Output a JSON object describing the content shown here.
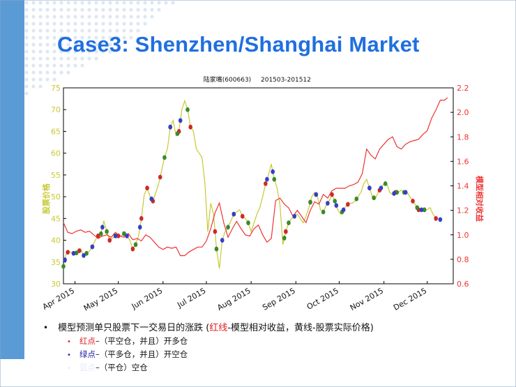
{
  "slide": {
    "title": "Case3: Shenzhen/Shanghai Market"
  },
  "chart_data": {
    "type": "line",
    "title": "陆家嘴(600663)",
    "subtitle": "201503-201512",
    "ylabel": "股票价格",
    "ylabel_right": "模型相对收益",
    "ylim": [
      30,
      75
    ],
    "ylim_right": [
      0.6,
      2.2
    ],
    "yticks": [
      "30",
      "35",
      "40",
      "45",
      "50",
      "55",
      "60",
      "65",
      "70",
      "75"
    ],
    "yticks_right": [
      "0.6",
      "0.8",
      "1.0",
      "1.2",
      "1.4",
      "1.6",
      "1.8",
      "2.0",
      "2.2"
    ],
    "xlim": [
      0,
      270
    ],
    "xticks": [
      {
        "x": 8,
        "label": "Apr 2015"
      },
      {
        "x": 38,
        "label": "May 2015"
      },
      {
        "x": 69,
        "label": "Jun 2015"
      },
      {
        "x": 99,
        "label": "Jul 2015"
      },
      {
        "x": 130,
        "label": "Aug 2015"
      },
      {
        "x": 161,
        "label": "Sep 2015"
      },
      {
        "x": 191,
        "label": "Oct 2015"
      },
      {
        "x": 222,
        "label": "Nov 2015"
      },
      {
        "x": 252,
        "label": "Dec 2015"
      }
    ],
    "series": [
      {
        "name": "股票实际价格",
        "axis": "left",
        "color": "#c8c832",
        "points": [
          [
            0,
            34
          ],
          [
            2,
            37
          ],
          [
            4,
            37.5
          ],
          [
            6,
            37
          ],
          [
            8,
            37
          ],
          [
            10,
            37.2
          ],
          [
            12,
            38
          ],
          [
            14,
            36.5
          ],
          [
            16,
            37
          ],
          [
            18,
            37.5
          ],
          [
            20,
            38.5
          ],
          [
            22,
            40
          ],
          [
            24,
            41
          ],
          [
            26,
            41.5
          ],
          [
            28,
            44.5
          ],
          [
            30,
            42
          ],
          [
            32,
            40
          ],
          [
            34,
            40.5
          ],
          [
            36,
            41
          ],
          [
            38,
            41
          ],
          [
            40,
            41
          ],
          [
            42,
            41.5
          ],
          [
            44,
            41
          ],
          [
            46,
            40
          ],
          [
            48,
            38
          ],
          [
            50,
            39
          ],
          [
            52,
            41
          ],
          [
            54,
            45
          ],
          [
            56,
            50.5
          ],
          [
            58,
            52
          ],
          [
            60,
            50
          ],
          [
            62,
            49
          ],
          [
            64,
            51
          ],
          [
            66,
            53
          ],
          [
            68,
            56
          ],
          [
            70,
            59
          ],
          [
            72,
            61
          ],
          [
            74,
            66
          ],
          [
            76,
            67.5
          ],
          [
            78,
            64
          ],
          [
            80,
            65
          ],
          [
            82,
            70
          ],
          [
            84,
            72
          ],
          [
            86,
            70
          ],
          [
            88,
            66
          ],
          [
            90,
            65
          ],
          [
            92,
            61
          ],
          [
            94,
            60
          ],
          [
            96,
            59
          ],
          [
            98,
            53
          ],
          [
            100,
            42
          ],
          [
            102,
            48.5
          ],
          [
            104,
            46
          ],
          [
            106,
            38
          ],
          [
            108,
            33.5
          ],
          [
            110,
            40
          ],
          [
            112,
            42
          ],
          [
            114,
            43
          ],
          [
            116,
            44.5
          ],
          [
            118,
            46
          ],
          [
            120,
            46.5
          ],
          [
            122,
            47
          ],
          [
            124,
            45.5
          ],
          [
            126,
            45
          ],
          [
            128,
            44
          ],
          [
            130,
            42
          ],
          [
            132,
            44
          ],
          [
            134,
            46
          ],
          [
            136,
            47.5
          ],
          [
            138,
            50
          ],
          [
            140,
            53
          ],
          [
            142,
            55
          ],
          [
            144,
            57.5
          ],
          [
            146,
            54
          ],
          [
            148,
            52
          ],
          [
            150,
            48
          ],
          [
            152,
            39
          ],
          [
            154,
            42
          ],
          [
            156,
            44
          ],
          [
            158,
            45
          ],
          [
            160,
            45.5
          ],
          [
            162,
            46
          ],
          [
            164,
            45
          ],
          [
            166,
            44
          ],
          [
            168,
            45.5
          ],
          [
            170,
            47.5
          ],
          [
            172,
            50
          ],
          [
            174,
            51
          ],
          [
            176,
            50
          ],
          [
            178,
            47
          ],
          [
            180,
            46.5
          ],
          [
            182,
            48
          ],
          [
            184,
            49
          ],
          [
            186,
            50.5
          ],
          [
            188,
            49
          ],
          [
            190,
            47
          ],
          [
            192,
            46
          ],
          [
            194,
            47
          ],
          [
            196,
            48
          ],
          [
            198,
            48.5
          ],
          [
            200,
            48.5
          ],
          [
            202,
            49
          ],
          [
            204,
            50
          ],
          [
            206,
            51
          ],
          [
            208,
            53
          ],
          [
            210,
            54
          ],
          [
            212,
            52
          ],
          [
            214,
            50
          ],
          [
            216,
            49.5
          ],
          [
            218,
            51
          ],
          [
            220,
            52
          ],
          [
            222,
            53
          ],
          [
            224,
            53
          ],
          [
            226,
            51
          ],
          [
            228,
            50.5
          ],
          [
            230,
            51
          ],
          [
            232,
            51
          ],
          [
            234,
            51.5
          ],
          [
            236,
            51
          ],
          [
            238,
            51
          ],
          [
            240,
            50
          ],
          [
            242,
            49
          ],
          [
            244,
            48
          ],
          [
            246,
            47
          ],
          [
            248,
            47
          ],
          [
            250,
            47
          ],
          [
            252,
            47
          ],
          [
            254,
            47.5
          ],
          [
            256,
            46
          ],
          [
            258,
            45
          ],
          [
            260,
            45
          ],
          [
            262,
            44.5
          ]
        ]
      },
      {
        "name": "模型相对收益",
        "axis": "right",
        "color": "#ee3333",
        "points": [
          [
            0,
            1.1
          ],
          [
            3,
            1.02
          ],
          [
            6,
            1.01
          ],
          [
            9,
            1.03
          ],
          [
            12,
            1.04
          ],
          [
            15,
            1.02
          ],
          [
            18,
            1.03
          ],
          [
            21,
            1.0
          ],
          [
            24,
            0.97
          ],
          [
            27,
            0.99
          ],
          [
            30,
            1.0
          ],
          [
            33,
            0.98
          ],
          [
            36,
            1.02
          ],
          [
            39,
            0.99
          ],
          [
            42,
            0.98
          ],
          [
            45,
            1.01
          ],
          [
            48,
            0.96
          ],
          [
            51,
            0.97
          ],
          [
            54,
            0.95
          ],
          [
            57,
            1.0
          ],
          [
            60,
            0.98
          ],
          [
            63,
            0.94
          ],
          [
            66,
            0.9
          ],
          [
            69,
            0.88
          ],
          [
            72,
            0.9
          ],
          [
            75,
            0.89
          ],
          [
            78,
            0.9
          ],
          [
            81,
            0.83
          ],
          [
            84,
            0.83
          ],
          [
            87,
            0.86
          ],
          [
            90,
            0.88
          ],
          [
            93,
            0.9
          ],
          [
            96,
            0.9
          ],
          [
            99,
            0.95
          ],
          [
            102,
            1.05
          ],
          [
            105,
            1.18
          ],
          [
            108,
            1.26
          ],
          [
            111,
            1.1
          ],
          [
            114,
            0.98
          ],
          [
            117,
            1.05
          ],
          [
            120,
            1.11
          ],
          [
            123,
            1.05
          ],
          [
            126,
            1.0
          ],
          [
            129,
            0.99
          ],
          [
            132,
            1.05
          ],
          [
            135,
            1.08
          ],
          [
            138,
            1.0
          ],
          [
            141,
            0.94
          ],
          [
            144,
            0.97
          ],
          [
            147,
            1.28
          ],
          [
            150,
            1.3
          ],
          [
            153,
            1.25
          ],
          [
            156,
            1.22
          ],
          [
            159,
            1.15
          ],
          [
            162,
            1.2
          ],
          [
            165,
            1.15
          ],
          [
            168,
            1.1
          ],
          [
            171,
            1.2
          ],
          [
            174,
            1.27
          ],
          [
            177,
            1.25
          ],
          [
            180,
            1.33
          ],
          [
            183,
            1.3
          ],
          [
            186,
            1.36
          ],
          [
            189,
            1.38
          ],
          [
            192,
            1.38
          ],
          [
            195,
            1.38
          ],
          [
            198,
            1.4
          ],
          [
            201,
            1.41
          ],
          [
            204,
            1.43
          ],
          [
            207,
            1.5
          ],
          [
            210,
            1.7
          ],
          [
            213,
            1.65
          ],
          [
            216,
            1.62
          ],
          [
            219,
            1.7
          ],
          [
            222,
            1.74
          ],
          [
            225,
            1.78
          ],
          [
            228,
            1.8
          ],
          [
            231,
            1.72
          ],
          [
            234,
            1.7
          ],
          [
            237,
            1.74
          ],
          [
            240,
            1.76
          ],
          [
            243,
            1.77
          ],
          [
            246,
            1.78
          ],
          [
            249,
            1.82
          ],
          [
            252,
            1.85
          ],
          [
            255,
            1.95
          ],
          [
            258,
            2.02
          ],
          [
            261,
            2.1
          ],
          [
            264,
            2.1
          ],
          [
            266,
            2.12
          ]
        ]
      }
    ],
    "markers": {
      "red": [
        3,
        11,
        20,
        24,
        32,
        38,
        42,
        48,
        54,
        58,
        62,
        67,
        74,
        80,
        88,
        105,
        118,
        124,
        140,
        154,
        171,
        175,
        186,
        197,
        212,
        219,
        230,
        242,
        246,
        250,
        258
      ],
      "green": [
        0,
        9,
        16,
        26,
        30,
        42,
        50,
        61,
        70,
        79,
        86,
        106,
        114,
        128,
        146,
        153,
        156,
        171,
        180,
        188,
        193,
        203,
        215,
        223,
        231,
        236,
        245,
        250
      ],
      "blue": [
        1,
        7,
        14,
        20,
        27,
        36,
        44,
        53,
        61,
        74,
        81,
        110,
        118,
        141,
        145,
        160,
        175,
        183,
        189,
        194,
        212,
        220,
        229,
        237,
        248,
        261
      ]
    }
  },
  "bullets": {
    "main_prefix": "模型预测单只股票下一交易日的涨跌 (",
    "main_red": "红线",
    "main_suffix": "-模型相对收益，黄线-股票实际价格)",
    "items": [
      {
        "dot": "•",
        "label": "红点",
        "text": "–（平空仓，并且）开多仓"
      },
      {
        "dot": "•",
        "label": "绿点",
        "text": "–（平多仓，并且）开空仓"
      },
      {
        "dot": "•",
        "label": "蓝点",
        "text": "–（平仓）空仓"
      }
    ]
  },
  "colors": {
    "slide_stripe": "#5b9bd5",
    "title": "#1f6fe0",
    "price_line": "#c8c832",
    "return_line": "#ee3333",
    "marker_red": "#cc2a2a",
    "marker_green": "#3a8a2a",
    "marker_blue": "#3340c8"
  }
}
